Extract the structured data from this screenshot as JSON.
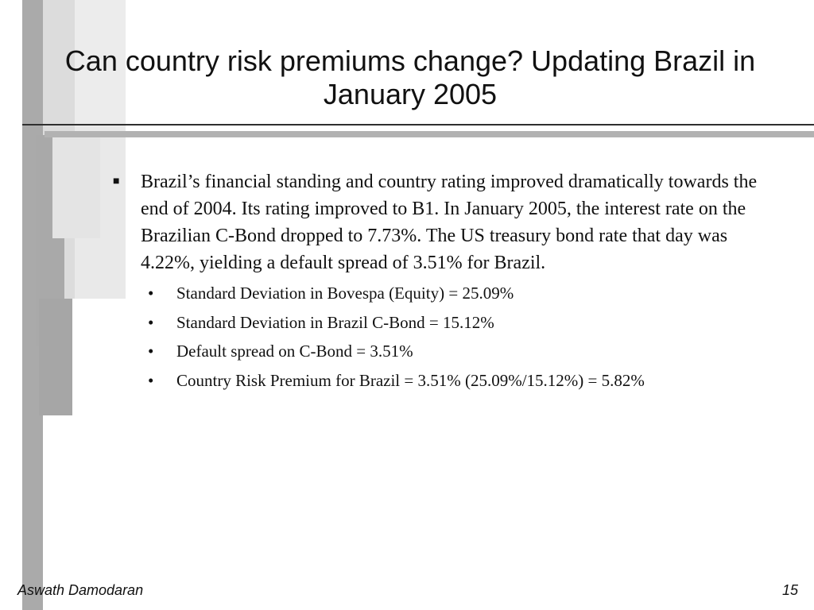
{
  "title": "Can country risk premiums change? Updating Brazil in January 2005",
  "main_bullet": {
    "marker": "■",
    "text": "Brazil’s financial standing and country rating improved dramatically towards the end of 2004. Its rating improved to B1. In January 2005, the interest rate on the Brazilian C-Bond dropped to 7.73%. The US treasury bond rate that day was 4.22%, yielding a default spread of 3.51% for Brazil."
  },
  "sub_bullets": [
    {
      "marker": "•",
      "text": "Standard Deviation in Bovespa (Equity) = 25.09%"
    },
    {
      "marker": "•",
      "text": "Standard Deviation in Brazil C-Bond = 15.12%"
    },
    {
      "marker": "•",
      "text": "Default spread on C-Bond = 3.51%"
    },
    {
      "marker": "•",
      "text": "Country Risk Premium for Brazil = 3.51% (25.09%/15.12%) =  5.82%"
    }
  ],
  "footer": {
    "author": "Aswath Damodaran",
    "page_number": "15"
  },
  "colors": {
    "decor_light": "#e8e8e8",
    "decor_mid": "#d9d9d9",
    "decor_dark": "#a8a8a8",
    "rule_gray": "#b2b2b2",
    "rule_dark": "#2f2f2f"
  }
}
